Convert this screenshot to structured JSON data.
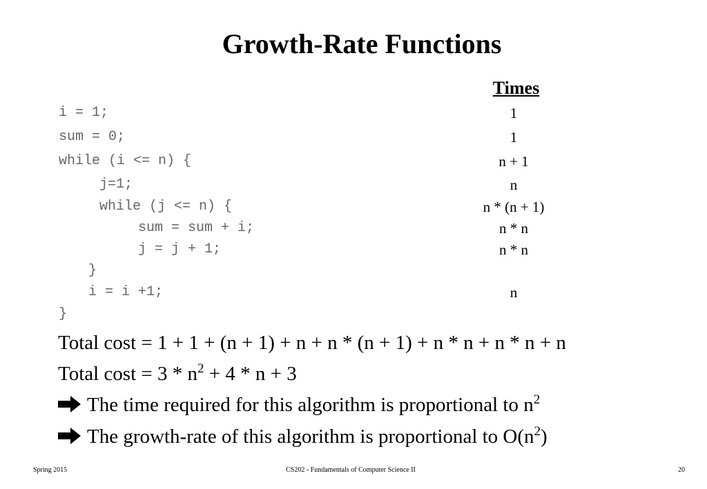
{
  "title": "Growth-Rate Functions",
  "times_header": "Times",
  "code_lines": [
    {
      "code": "i = 1;",
      "time": "1"
    },
    {
      "code": "sum = 0;",
      "time": "1"
    },
    {
      "code": "while (i <= n) {",
      "time": "n + 1"
    },
    {
      "code": "j=1;",
      "time": "n"
    },
    {
      "code": "while (j <= n) {",
      "time": "n * (n + 1)"
    },
    {
      "code": "sum = sum + i;",
      "time": "n * n"
    },
    {
      "code": "j = j + 1;",
      "time": "n * n"
    },
    {
      "code": "}",
      "time": ""
    },
    {
      "code": "i = i +1;",
      "time": "n"
    },
    {
      "code": "}",
      "time": ""
    }
  ],
  "total_cost_1": "Total cost = 1 + 1 + (n + 1) + n + n * (n + 1) + n * n + n * n + n",
  "total_cost_2": {
    "prefix": "Total cost = 3 * n",
    "exp": "2",
    "suffix": " + 4 * n + 3"
  },
  "conclusion_1": {
    "icon": "right-arrow-icon",
    "text": "The time required for this algorithm is proportional to n",
    "exp": "2"
  },
  "conclusion_2": {
    "icon": "right-arrow-icon",
    "text": "The growth-rate of this algorithm is proportional to O(n",
    "exp": "2",
    "suffix": ")"
  },
  "footer": {
    "left": "Spring 2015",
    "center": "CS202 - Fundamentals of Computer Science II",
    "page": "20"
  }
}
